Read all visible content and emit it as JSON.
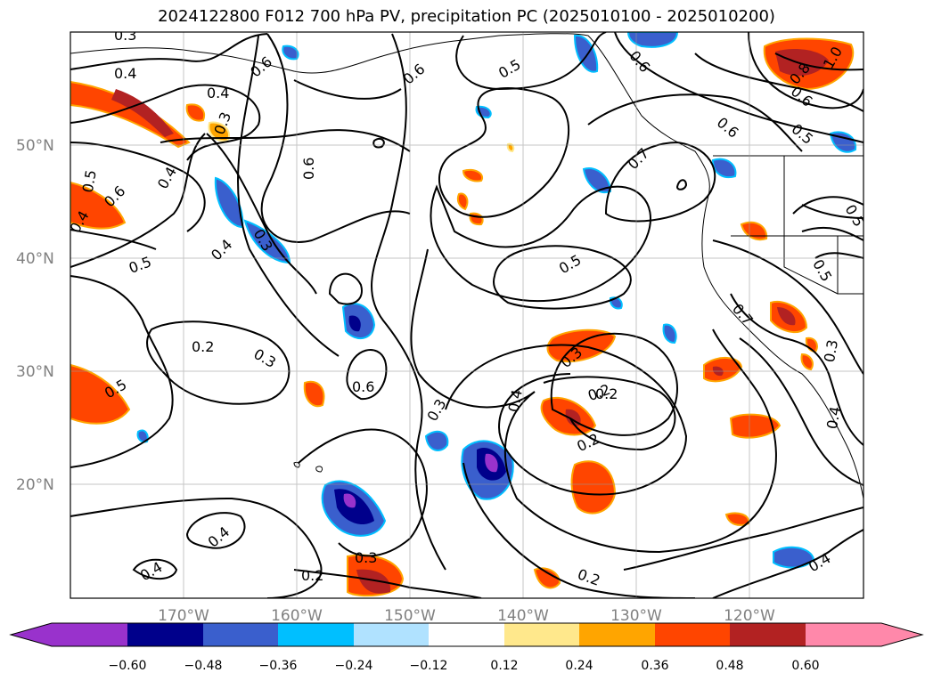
{
  "title": "2024122800 F012 700 hPa PV, precipitation PC (2025010100 - 2025010200)",
  "lat_labels": [
    "50°N",
    "40°N",
    "30°N",
    "20°N"
  ],
  "lon_labels": [
    "170°W",
    "160°W",
    "150°W",
    "140°W",
    "130°W",
    "120°W"
  ],
  "contour_labels": [
    "0.3",
    "0.4",
    "0.6",
    "0.4",
    "0.5",
    "0.6",
    "0.4",
    "0.3",
    "0.6",
    "0.6",
    "0.5",
    "0.6",
    "0.6",
    "0.4",
    "0.3",
    "0.5",
    "0.4",
    "0.7",
    "0.5",
    "0.2",
    "0.3",
    "0.6",
    "0.5",
    "0.3",
    "0.4",
    "0.3",
    "0.2",
    "0.2",
    "0.4",
    "0.3",
    "0.2",
    "0.2",
    "0.4",
    "0.5",
    "0.7",
    "0.5",
    "0.4",
    "0.3",
    "0.5",
    "0.6",
    "0.8",
    "1.0",
    "0.4",
    "0.2"
  ],
  "colorbar": {
    "tick_labels": [
      "−0.60",
      "−0.48",
      "−0.36",
      "−0.24",
      "−0.12",
      "0.12",
      "0.24",
      "0.36",
      "0.48",
      "0.60"
    ],
    "colors": [
      "#9932cc",
      "#00008b",
      "#3a5fcd",
      "#00bfff",
      "#b0e2ff",
      "#ffffff",
      "#ffe88c",
      "#ffa500",
      "#ff4500",
      "#b22222",
      "#ff88aa"
    ]
  },
  "fill_colors": {
    "neg_strong": "#9932cc",
    "neg_deep": "#00008b",
    "neg_mid": "#3a5fcd",
    "neg_light": "#00bfff",
    "pos_light": "#ffe88c",
    "pos_mid": "#ffa500",
    "pos_strong": "#ff4500",
    "pos_deep": "#b22222"
  }
}
